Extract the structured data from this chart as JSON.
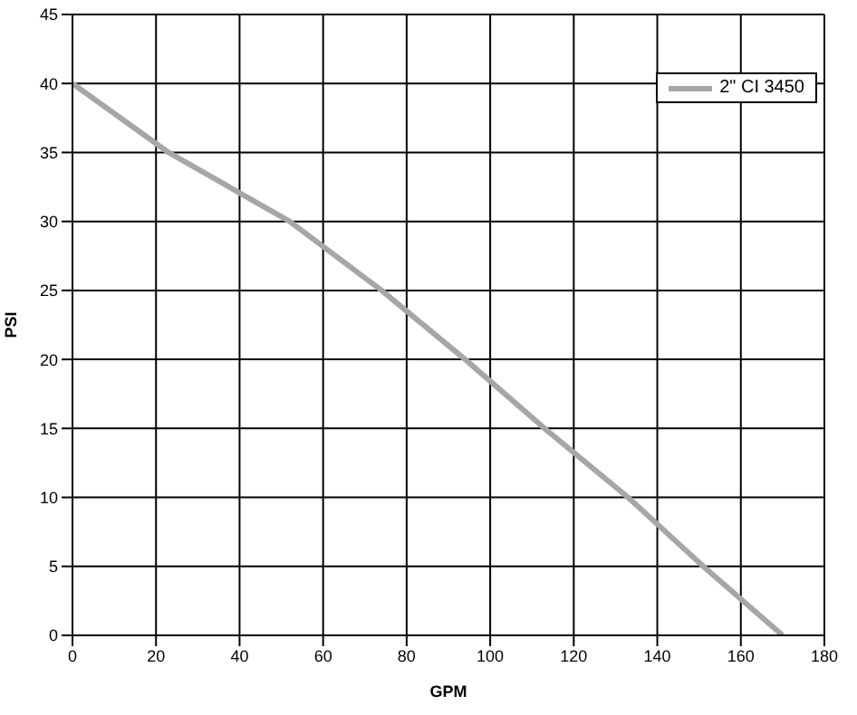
{
  "chart_data": {
    "type": "line",
    "xlabel": "GPM",
    "ylabel": "PSI",
    "series": [
      {
        "name": "2\" CI 3450",
        "color": "#a6a6a6",
        "x": [
          0,
          23,
          52,
          74,
          94,
          113,
          133,
          151,
          170
        ],
        "values": [
          40,
          35,
          30,
          25,
          20,
          15,
          10,
          5,
          0
        ]
      }
    ],
    "xlim": [
      0,
      180
    ],
    "xticks": [
      0,
      20,
      40,
      60,
      80,
      100,
      120,
      140,
      160,
      180
    ],
    "ylim": [
      0,
      45
    ],
    "yticks": [
      0,
      5,
      10,
      15,
      20,
      25,
      30,
      35,
      40,
      45
    ],
    "grid": true,
    "legend": "top right",
    "marker": "none",
    "line_style": "solid"
  }
}
